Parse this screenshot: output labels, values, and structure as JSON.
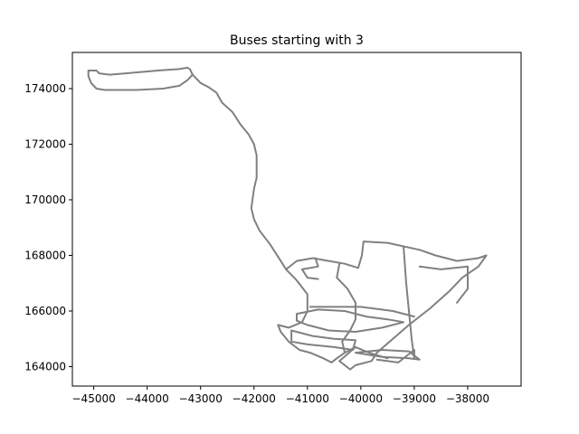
{
  "chart_data": {
    "type": "line",
    "title": "Buses starting with 3",
    "xlabel": "",
    "ylabel": "",
    "xlim": [
      -45400,
      -37000
    ],
    "ylim": [
      163300,
      175300
    ],
    "x_ticks": [
      -45000,
      -44000,
      -43000,
      -42000,
      -41000,
      -40000,
      -39000,
      -38000
    ],
    "x_tick_labels": [
      "−45000",
      "−44000",
      "−43000",
      "−42000",
      "−41000",
      "−40000",
      "−39000",
      "−38000"
    ],
    "y_ticks": [
      164000,
      166000,
      168000,
      170000,
      172000,
      174000
    ],
    "y_tick_labels": [
      "164000",
      "166000",
      "168000",
      "170000",
      "172000",
      "174000"
    ],
    "grid": false,
    "line_color": "#808080",
    "series": [
      {
        "points": [
          [
            -45100,
            174650
          ],
          [
            -44950,
            174650
          ],
          [
            -44900,
            174550
          ],
          [
            -44700,
            174500
          ],
          [
            -44400,
            174550
          ],
          [
            -43800,
            174650
          ],
          [
            -43400,
            174700
          ],
          [
            -43250,
            174750
          ],
          [
            -43200,
            174700
          ],
          [
            -43150,
            174500
          ],
          [
            -43250,
            174300
          ],
          [
            -43400,
            174100
          ],
          [
            -43700,
            174000
          ],
          [
            -44200,
            173950
          ],
          [
            -44800,
            173950
          ],
          [
            -44950,
            174000
          ],
          [
            -45050,
            174200
          ],
          [
            -45100,
            174450
          ],
          [
            -45100,
            174650
          ]
        ]
      },
      {
        "points": [
          [
            -43150,
            174500
          ],
          [
            -43000,
            174200
          ],
          [
            -42850,
            174050
          ],
          [
            -42700,
            173850
          ],
          [
            -42600,
            173500
          ],
          [
            -42400,
            173150
          ],
          [
            -42250,
            172700
          ],
          [
            -42100,
            172350
          ],
          [
            -42000,
            172000
          ],
          [
            -41950,
            171600
          ],
          [
            -41950,
            171200
          ],
          [
            -41950,
            170800
          ],
          [
            -42000,
            170400
          ],
          [
            -42050,
            169700
          ],
          [
            -42000,
            169300
          ],
          [
            -41900,
            168900
          ],
          [
            -41700,
            168400
          ],
          [
            -41500,
            167800
          ],
          [
            -41400,
            167500
          ],
          [
            -41200,
            167100
          ],
          [
            -41000,
            166600
          ],
          [
            -41000,
            166000
          ],
          [
            -41100,
            165600
          ],
          [
            -41350,
            165400
          ],
          [
            -41550,
            165500
          ],
          [
            -41500,
            165250
          ],
          [
            -41350,
            164900
          ],
          [
            -41150,
            164600
          ],
          [
            -40950,
            164500
          ],
          [
            -40700,
            164300
          ],
          [
            -40550,
            164150
          ],
          [
            -40450,
            164300
          ],
          [
            -40300,
            164500
          ],
          [
            -40100,
            164700
          ]
        ]
      },
      {
        "points": [
          [
            -41400,
            167500
          ],
          [
            -41200,
            167800
          ],
          [
            -40900,
            167900
          ],
          [
            -40600,
            167800
          ],
          [
            -40300,
            167700
          ],
          [
            -40050,
            167550
          ],
          [
            -39980,
            168000
          ],
          [
            -39950,
            168500
          ],
          [
            -39500,
            168450
          ],
          [
            -38900,
            168200
          ],
          [
            -38600,
            168000
          ],
          [
            -38200,
            167800
          ],
          [
            -37800,
            167900
          ],
          [
            -37650,
            168000
          ],
          [
            -37800,
            167600
          ],
          [
            -38100,
            167200
          ],
          [
            -38350,
            166700
          ],
          [
            -38700,
            166100
          ],
          [
            -39100,
            165500
          ],
          [
            -39400,
            165000
          ],
          [
            -39700,
            164500
          ],
          [
            -39800,
            164200
          ],
          [
            -40100,
            164050
          ],
          [
            -40200,
            163900
          ],
          [
            -40400,
            164200
          ],
          [
            -40100,
            164700
          ],
          [
            -39850,
            164500
          ],
          [
            -39500,
            164300
          ]
        ]
      },
      {
        "points": [
          [
            -39200,
            168300
          ],
          [
            -39150,
            167000
          ],
          [
            -39100,
            166000
          ],
          [
            -39050,
            165000
          ],
          [
            -39000,
            164300
          ],
          [
            -39000,
            164600
          ],
          [
            -39300,
            164150
          ],
          [
            -39700,
            164250
          ]
        ]
      },
      {
        "points": [
          [
            -38900,
            167600
          ],
          [
            -38500,
            167500
          ],
          [
            -38000,
            167600
          ],
          [
            -38000,
            166800
          ],
          [
            -38200,
            166300
          ]
        ]
      },
      {
        "points": [
          [
            -41200,
            165900
          ],
          [
            -40800,
            166050
          ],
          [
            -40300,
            166000
          ],
          [
            -39900,
            165800
          ],
          [
            -39500,
            165700
          ],
          [
            -39200,
            165600
          ],
          [
            -39600,
            165400
          ],
          [
            -40100,
            165250
          ],
          [
            -40600,
            165300
          ],
          [
            -41000,
            165500
          ],
          [
            -41200,
            165650
          ],
          [
            -41200,
            165900
          ]
        ]
      },
      {
        "points": [
          [
            -41300,
            165300
          ],
          [
            -40900,
            165100
          ],
          [
            -40500,
            165000
          ],
          [
            -40100,
            164950
          ],
          [
            -40150,
            164600
          ],
          [
            -40500,
            164700
          ],
          [
            -41000,
            164800
          ],
          [
            -41300,
            164900
          ],
          [
            -41300,
            165300
          ]
        ]
      },
      {
        "points": [
          [
            -40400,
            167700
          ],
          [
            -40450,
            167200
          ],
          [
            -40250,
            166800
          ],
          [
            -40100,
            166300
          ],
          [
            -40100,
            165700
          ],
          [
            -40200,
            165300
          ],
          [
            -40350,
            164900
          ],
          [
            -40300,
            164500
          ]
        ]
      },
      {
        "points": [
          [
            -40950,
            166150
          ],
          [
            -40500,
            166150
          ],
          [
            -40000,
            166150
          ],
          [
            -39400,
            166000
          ],
          [
            -39000,
            165800
          ]
        ]
      },
      {
        "points": [
          [
            -40100,
            164500
          ],
          [
            -39600,
            164350
          ],
          [
            -39100,
            164300
          ],
          [
            -38900,
            164250
          ],
          [
            -39100,
            164550
          ],
          [
            -39600,
            164600
          ],
          [
            -40100,
            164500
          ]
        ]
      },
      {
        "points": [
          [
            -40850,
            167900
          ],
          [
            -40800,
            167600
          ],
          [
            -41100,
            167500
          ],
          [
            -41000,
            167200
          ],
          [
            -40800,
            167150
          ]
        ]
      }
    ]
  }
}
